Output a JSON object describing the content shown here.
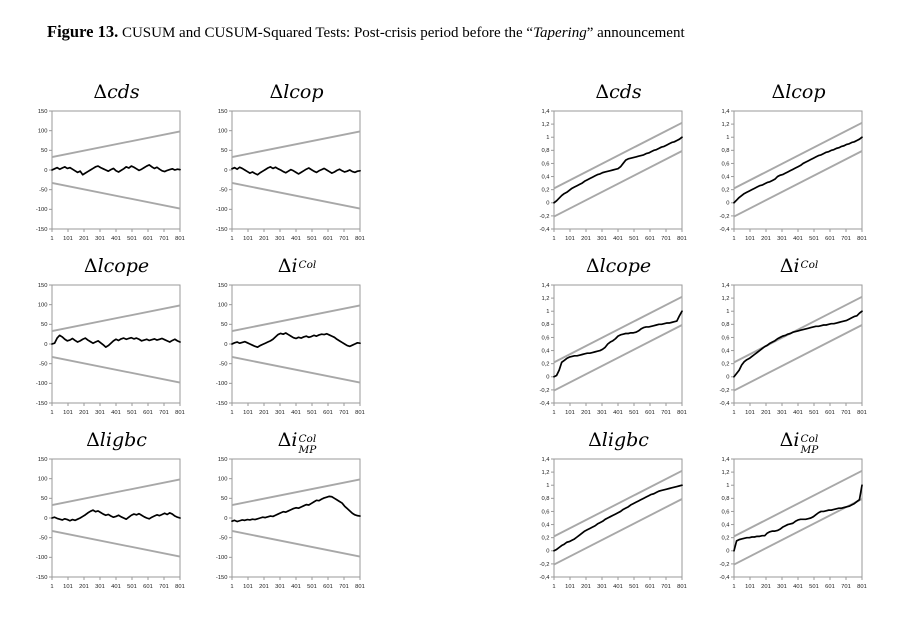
{
  "figure_caption": {
    "label": "Figure 13.",
    "text_pre": " CUSUM and CUSUM-Squared Tests: Post-crisis period before the “",
    "italic_word": "Tapering",
    "text_post": "” announcement"
  },
  "colors": {
    "bound_line": "#a8a8a8",
    "series_line": "#000000",
    "plot_border": "#9a9a9a",
    "tick_text": "#1a1a1a",
    "background": "#ffffff"
  },
  "axes_defaults": {
    "xlim": [
      1,
      801
    ],
    "xticks": [
      1,
      101,
      201,
      301,
      401,
      501,
      601,
      701,
      801
    ],
    "xtick_labels": [
      "1",
      "101",
      "201",
      "301",
      "401",
      "501",
      "601",
      "701",
      "801"
    ]
  },
  "chart_data": [
    {
      "id": "cusum-cds",
      "type": "line",
      "test": "CUSUM",
      "title": {
        "delta": "Δ",
        "base": "cds"
      },
      "ylim": [
        -150,
        150
      ],
      "yticks": [
        150,
        100,
        50,
        0,
        -50,
        -100,
        -150
      ],
      "ytick_labels": [
        "150",
        "100",
        "50",
        "0",
        "-50",
        "-100",
        "-150"
      ],
      "bounds": {
        "upper": {
          "start": 33,
          "end": 98
        },
        "lower": {
          "start": -33,
          "end": -98
        }
      },
      "x_step": 16,
      "series_y": [
        0,
        3,
        6,
        2,
        5,
        8,
        4,
        6,
        2,
        -2,
        -6,
        -3,
        -12,
        -8,
        -4,
        0,
        4,
        8,
        10,
        6,
        3,
        0,
        -3,
        1,
        4,
        -2,
        -5,
        -1,
        3,
        8,
        5,
        10,
        7,
        3,
        -1,
        2,
        6,
        10,
        13,
        8,
        4,
        7,
        2,
        -2,
        -4,
        -1,
        1,
        3,
        0,
        2,
        1
      ]
    },
    {
      "id": "cusum-lcop",
      "type": "line",
      "test": "CUSUM",
      "title": {
        "delta": "Δ",
        "base": "lcop"
      },
      "ylim": [
        -150,
        150
      ],
      "yticks": [
        150,
        100,
        50,
        0,
        -50,
        -100,
        -150
      ],
      "ytick_labels": [
        "150",
        "100",
        "50",
        "0",
        "-50",
        "-100",
        "-150"
      ],
      "bounds": {
        "upper": {
          "start": 33,
          "end": 98
        },
        "lower": {
          "start": -33,
          "end": -98
        }
      },
      "x_step": 16,
      "series_y": [
        3,
        6,
        2,
        7,
        4,
        0,
        -4,
        -8,
        -5,
        -9,
        -12,
        -7,
        -3,
        1,
        5,
        8,
        4,
        7,
        3,
        0,
        -4,
        -7,
        -3,
        1,
        -2,
        -6,
        -10,
        -6,
        -2,
        2,
        5,
        1,
        -3,
        -6,
        -2,
        1,
        4,
        0,
        -4,
        -8,
        -5,
        -1,
        2,
        -2,
        -5,
        -3,
        0,
        -4,
        -6,
        -3,
        -2
      ]
    },
    {
      "id": "cusum-lcope",
      "type": "line",
      "test": "CUSUM",
      "title": {
        "delta": "Δ",
        "base": "lcope"
      },
      "ylim": [
        -150,
        150
      ],
      "yticks": [
        150,
        100,
        50,
        0,
        -50,
        -100,
        -150
      ],
      "ytick_labels": [
        "150",
        "100",
        "50",
        "0",
        "-50",
        "-100",
        "-150"
      ],
      "bounds": {
        "upper": {
          "start": 33,
          "end": 98
        },
        "lower": {
          "start": -33,
          "end": -98
        }
      },
      "x_step": 16,
      "series_y": [
        0,
        2,
        15,
        22,
        18,
        12,
        8,
        10,
        14,
        9,
        5,
        8,
        12,
        15,
        10,
        6,
        2,
        5,
        8,
        3,
        -2,
        -8,
        -4,
        2,
        8,
        12,
        9,
        13,
        15,
        12,
        14,
        16,
        13,
        15,
        12,
        8,
        10,
        12,
        9,
        11,
        13,
        10,
        12,
        14,
        11,
        8,
        5,
        9,
        12,
        8,
        5
      ]
    },
    {
      "id": "cusum-icol",
      "type": "line",
      "test": "CUSUM",
      "title": {
        "delta": "Δ",
        "base": "i",
        "sup": "Col"
      },
      "ylim": [
        -150,
        150
      ],
      "yticks": [
        150,
        100,
        50,
        0,
        -50,
        -100,
        -150
      ],
      "ytick_labels": [
        "150",
        "100",
        "50",
        "0",
        "-50",
        "-100",
        "-150"
      ],
      "bounds": {
        "upper": {
          "start": 33,
          "end": 98
        },
        "lower": {
          "start": -33,
          "end": -98
        }
      },
      "x_step": 16,
      "series_y": [
        0,
        3,
        5,
        2,
        4,
        6,
        3,
        0,
        -3,
        -6,
        -8,
        -4,
        -1,
        2,
        5,
        8,
        12,
        18,
        24,
        27,
        25,
        28,
        24,
        20,
        16,
        14,
        17,
        15,
        18,
        20,
        17,
        19,
        22,
        20,
        23,
        25,
        24,
        26,
        23,
        20,
        17,
        12,
        8,
        4,
        0,
        -4,
        -6,
        -3,
        0,
        3,
        2
      ]
    },
    {
      "id": "cusum-ligbc",
      "type": "line",
      "test": "CUSUM",
      "title": {
        "delta": "Δ",
        "base": "ligbc"
      },
      "ylim": [
        -150,
        150
      ],
      "yticks": [
        150,
        100,
        50,
        0,
        -50,
        -100,
        -150
      ],
      "ytick_labels": [
        "150",
        "100",
        "50",
        "0",
        "-50",
        "-100",
        "-150"
      ],
      "bounds": {
        "upper": {
          "start": 33,
          "end": 98
        },
        "lower": {
          "start": -33,
          "end": -98
        }
      },
      "x_step": 16,
      "series_y": [
        0,
        2,
        -1,
        -3,
        -5,
        -2,
        -4,
        -7,
        -4,
        -6,
        -3,
        0,
        4,
        8,
        13,
        17,
        20,
        16,
        18,
        14,
        10,
        7,
        9,
        5,
        2,
        4,
        7,
        3,
        0,
        -3,
        2,
        7,
        10,
        8,
        11,
        7,
        3,
        0,
        -2,
        2,
        5,
        8,
        6,
        9,
        12,
        9,
        13,
        10,
        5,
        2,
        0
      ]
    },
    {
      "id": "cusum-icol-mp",
      "type": "line",
      "test": "CUSUM",
      "title": {
        "delta": "Δ",
        "base": "i",
        "sup": "Col",
        "sub": "MP"
      },
      "ylim": [
        -150,
        150
      ],
      "yticks": [
        150,
        100,
        50,
        0,
        -50,
        -100,
        -150
      ],
      "ytick_labels": [
        "150",
        "100",
        "50",
        "0",
        "-50",
        "-100",
        "-150"
      ],
      "bounds": {
        "upper": {
          "start": 33,
          "end": 98
        },
        "lower": {
          "start": -33,
          "end": -98
        }
      },
      "x_step": 16,
      "series_y": [
        -8,
        -6,
        -9,
        -7,
        -5,
        -6,
        -4,
        -5,
        -3,
        -4,
        -2,
        0,
        2,
        1,
        3,
        5,
        4,
        7,
        10,
        13,
        16,
        15,
        18,
        21,
        24,
        26,
        25,
        28,
        31,
        34,
        33,
        37,
        41,
        45,
        44,
        48,
        51,
        53,
        55,
        54,
        50,
        46,
        42,
        38,
        30,
        24,
        18,
        12,
        8,
        6,
        5
      ]
    },
    {
      "id": "cusumsq-cds",
      "type": "line",
      "test": "CUSUM-Squared",
      "title": {
        "delta": "Δ",
        "base": "cds"
      },
      "ylim": [
        -0.4,
        1.4
      ],
      "yticks": [
        1.4,
        1.2,
        1,
        0.8,
        0.6,
        0.4,
        0.2,
        0,
        -0.2,
        -0.4
      ],
      "ytick_labels": [
        "1,4",
        "1,2",
        "1",
        "0,8",
        "0,6",
        "0,4",
        "0,2",
        "0",
        "-0,2",
        "-0,4"
      ],
      "bounds": {
        "upper": {
          "start": 0.22,
          "end": 1.22
        },
        "lower": {
          "start": -0.21,
          "end": 0.79
        }
      },
      "x_step": 16,
      "series_y": [
        0,
        0.03,
        0.07,
        0.11,
        0.14,
        0.16,
        0.19,
        0.22,
        0.24,
        0.26,
        0.28,
        0.3,
        0.33,
        0.35,
        0.37,
        0.39,
        0.41,
        0.43,
        0.44,
        0.46,
        0.47,
        0.48,
        0.49,
        0.5,
        0.51,
        0.52,
        0.55,
        0.6,
        0.65,
        0.67,
        0.68,
        0.69,
        0.7,
        0.71,
        0.72,
        0.73,
        0.75,
        0.76,
        0.78,
        0.8,
        0.81,
        0.83,
        0.85,
        0.86,
        0.88,
        0.9,
        0.92,
        0.93,
        0.95,
        0.97,
        1.0
      ]
    },
    {
      "id": "cusumsq-lcop",
      "type": "line",
      "test": "CUSUM-Squared",
      "title": {
        "delta": "Δ",
        "base": "lcop"
      },
      "ylim": [
        -0.4,
        1.4
      ],
      "yticks": [
        1.4,
        1.2,
        1,
        0.8,
        0.6,
        0.4,
        0.2,
        0,
        -0.2,
        -0.4
      ],
      "ytick_labels": [
        "1,4",
        "1,2",
        "1",
        "0,8",
        "0,6",
        "0,4",
        "0,2",
        "0",
        "-0,2",
        "-0,4"
      ],
      "bounds": {
        "upper": {
          "start": 0.22,
          "end": 1.22
        },
        "lower": {
          "start": -0.21,
          "end": 0.79
        }
      },
      "x_step": 16,
      "series_y": [
        0,
        0.04,
        0.08,
        0.11,
        0.14,
        0.16,
        0.18,
        0.2,
        0.22,
        0.24,
        0.26,
        0.27,
        0.29,
        0.31,
        0.32,
        0.34,
        0.36,
        0.4,
        0.42,
        0.43,
        0.45,
        0.47,
        0.49,
        0.51,
        0.53,
        0.55,
        0.57,
        0.6,
        0.62,
        0.64,
        0.66,
        0.68,
        0.7,
        0.72,
        0.73,
        0.75,
        0.77,
        0.78,
        0.8,
        0.81,
        0.83,
        0.84,
        0.86,
        0.87,
        0.89,
        0.9,
        0.92,
        0.93,
        0.95,
        0.97,
        1.0
      ]
    },
    {
      "id": "cusumsq-lcope",
      "type": "line",
      "test": "CUSUM-Squared",
      "title": {
        "delta": "Δ",
        "base": "lcope"
      },
      "ylim": [
        -0.4,
        1.4
      ],
      "yticks": [
        1.4,
        1.2,
        1,
        0.8,
        0.6,
        0.4,
        0.2,
        0,
        -0.2,
        -0.4
      ],
      "ytick_labels": [
        "1,4",
        "1,2",
        "1",
        "0,8",
        "0,6",
        "0,4",
        "0,2",
        "0",
        "-0,2",
        "-0,4"
      ],
      "bounds": {
        "upper": {
          "start": 0.22,
          "end": 1.22
        },
        "lower": {
          "start": -0.21,
          "end": 0.79
        }
      },
      "x_step": 16,
      "series_y": [
        0,
        0.02,
        0.1,
        0.22,
        0.25,
        0.28,
        0.3,
        0.31,
        0.32,
        0.32,
        0.33,
        0.34,
        0.35,
        0.36,
        0.36,
        0.37,
        0.38,
        0.39,
        0.4,
        0.42,
        0.45,
        0.5,
        0.53,
        0.55,
        0.58,
        0.62,
        0.64,
        0.65,
        0.66,
        0.66,
        0.67,
        0.67,
        0.68,
        0.7,
        0.73,
        0.75,
        0.76,
        0.76,
        0.77,
        0.78,
        0.79,
        0.8,
        0.8,
        0.81,
        0.82,
        0.82,
        0.83,
        0.84,
        0.85,
        0.93,
        1.0
      ]
    },
    {
      "id": "cusumsq-icol",
      "type": "line",
      "test": "CUSUM-Squared",
      "title": {
        "delta": "Δ",
        "base": "i",
        "sup": "Col"
      },
      "ylim": [
        -0.4,
        1.4
      ],
      "yticks": [
        1.4,
        1.2,
        1,
        0.8,
        0.6,
        0.4,
        0.2,
        0,
        -0.2,
        -0.4
      ],
      "ytick_labels": [
        "1,4",
        "1,2",
        "1",
        "0,8",
        "0,6",
        "0,4",
        "0,2",
        "0",
        "-0,2",
        "-0,4"
      ],
      "bounds": {
        "upper": {
          "start": 0.22,
          "end": 1.22
        },
        "lower": {
          "start": -0.21,
          "end": 0.79
        }
      },
      "x_step": 16,
      "series_y": [
        0,
        0.05,
        0.1,
        0.18,
        0.23,
        0.26,
        0.28,
        0.31,
        0.34,
        0.37,
        0.4,
        0.43,
        0.46,
        0.48,
        0.51,
        0.53,
        0.55,
        0.58,
        0.6,
        0.62,
        0.63,
        0.65,
        0.66,
        0.68,
        0.69,
        0.7,
        0.71,
        0.72,
        0.73,
        0.74,
        0.75,
        0.76,
        0.77,
        0.77,
        0.78,
        0.79,
        0.79,
        0.8,
        0.81,
        0.81,
        0.82,
        0.83,
        0.84,
        0.85,
        0.86,
        0.88,
        0.9,
        0.92,
        0.93,
        0.97,
        1.0
      ]
    },
    {
      "id": "cusumsq-ligbc",
      "type": "line",
      "test": "CUSUM-Squared",
      "title": {
        "delta": "Δ",
        "base": "ligbc"
      },
      "ylim": [
        -0.4,
        1.4
      ],
      "yticks": [
        1.4,
        1.2,
        1,
        0.8,
        0.6,
        0.4,
        0.2,
        0,
        -0.2,
        -0.4
      ],
      "ytick_labels": [
        "1,4",
        "1,2",
        "1",
        "0,8",
        "0,6",
        "0,4",
        "0,2",
        "0",
        "-0,2",
        "-0,4"
      ],
      "bounds": {
        "upper": {
          "start": 0.22,
          "end": 1.22
        },
        "lower": {
          "start": -0.21,
          "end": 0.79
        }
      },
      "x_step": 16,
      "series_y": [
        0,
        0.02,
        0.05,
        0.08,
        0.1,
        0.13,
        0.14,
        0.16,
        0.18,
        0.21,
        0.24,
        0.27,
        0.3,
        0.32,
        0.34,
        0.36,
        0.38,
        0.41,
        0.43,
        0.45,
        0.48,
        0.5,
        0.52,
        0.54,
        0.56,
        0.58,
        0.6,
        0.63,
        0.65,
        0.67,
        0.7,
        0.72,
        0.74,
        0.76,
        0.78,
        0.8,
        0.82,
        0.84,
        0.86,
        0.87,
        0.89,
        0.91,
        0.92,
        0.93,
        0.94,
        0.95,
        0.96,
        0.97,
        0.98,
        0.99,
        1.0
      ]
    },
    {
      "id": "cusumsq-icol-mp",
      "type": "line",
      "test": "CUSUM-Squared",
      "title": {
        "delta": "Δ",
        "base": "i",
        "sup": "Col",
        "sub": "MP"
      },
      "ylim": [
        -0.4,
        1.4
      ],
      "yticks": [
        1.4,
        1.2,
        1,
        0.8,
        0.6,
        0.4,
        0.2,
        0,
        -0.2,
        -0.4
      ],
      "ytick_labels": [
        "1,4",
        "1,2",
        "1",
        "0,8",
        "0,6",
        "0,4",
        "0,2",
        "0",
        "-0,2",
        "-0,4"
      ],
      "bounds": {
        "upper": {
          "start": 0.22,
          "end": 1.22
        },
        "lower": {
          "start": -0.21,
          "end": 0.79
        }
      },
      "x_step": 16,
      "series_y": [
        0,
        0.15,
        0.17,
        0.18,
        0.19,
        0.2,
        0.2,
        0.21,
        0.21,
        0.22,
        0.22,
        0.23,
        0.23,
        0.27,
        0.29,
        0.3,
        0.3,
        0.31,
        0.33,
        0.36,
        0.38,
        0.4,
        0.41,
        0.42,
        0.45,
        0.47,
        0.48,
        0.48,
        0.48,
        0.49,
        0.5,
        0.52,
        0.55,
        0.58,
        0.6,
        0.6,
        0.61,
        0.62,
        0.62,
        0.63,
        0.64,
        0.65,
        0.65,
        0.66,
        0.67,
        0.68,
        0.7,
        0.72,
        0.75,
        0.78,
        1.0
      ]
    }
  ]
}
